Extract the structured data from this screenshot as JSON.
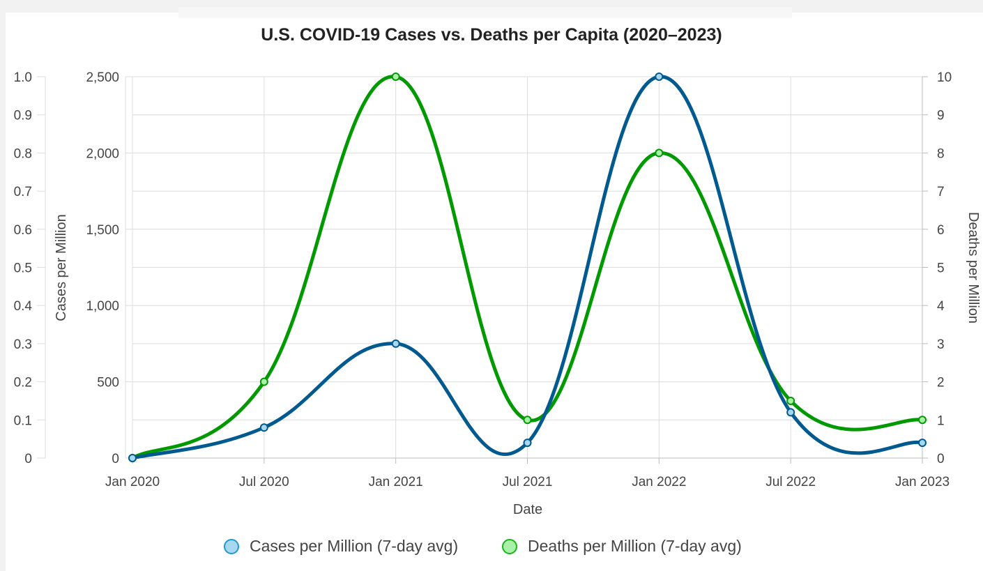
{
  "chart_data": {
    "type": "line",
    "title": "U.S. COVID-19 Cases vs. Deaths per Capita (2020–2023)",
    "xlabel": "Date",
    "categories": [
      "Jan 2020",
      "Jul 2020",
      "Jan 2021",
      "Jul 2021",
      "Jan 2022",
      "Jul 2022",
      "Jan 2023"
    ],
    "y_axes": {
      "left_outer": {
        "ticks": [
          "0",
          "0.1",
          "0.2",
          "0.3",
          "0.4",
          "0.5",
          "0.6",
          "0.7",
          "0.8",
          "0.9",
          "1.0"
        ]
      },
      "left": {
        "label": "Cases per Million",
        "ylim": [
          0,
          2500
        ],
        "ticks": [
          "0",
          "500",
          "1,000",
          "1,500",
          "2,000",
          "2,500"
        ]
      },
      "right": {
        "label": "Deaths per Million",
        "ylim": [
          0,
          10
        ],
        "ticks": [
          "0",
          "1",
          "2",
          "3",
          "4",
          "5",
          "6",
          "7",
          "8",
          "9",
          "10"
        ]
      }
    },
    "series": [
      {
        "name": "Cases per Million (7-day avg)",
        "axis": "left",
        "color": "#005a8f",
        "marker_fill": "#a8d8f0",
        "marker_stroke": "#1c9ad6",
        "values": [
          0,
          200,
          750,
          100,
          2500,
          300,
          100
        ]
      },
      {
        "name": "Deaths per Million (7-day avg)",
        "axis": "right",
        "color": "#009900",
        "marker_fill": "#a9f0a9",
        "marker_stroke": "#16b716",
        "values": [
          0,
          2,
          10,
          1,
          8,
          1.5,
          1
        ]
      }
    ],
    "grid": true,
    "legend": "bottom-center"
  }
}
